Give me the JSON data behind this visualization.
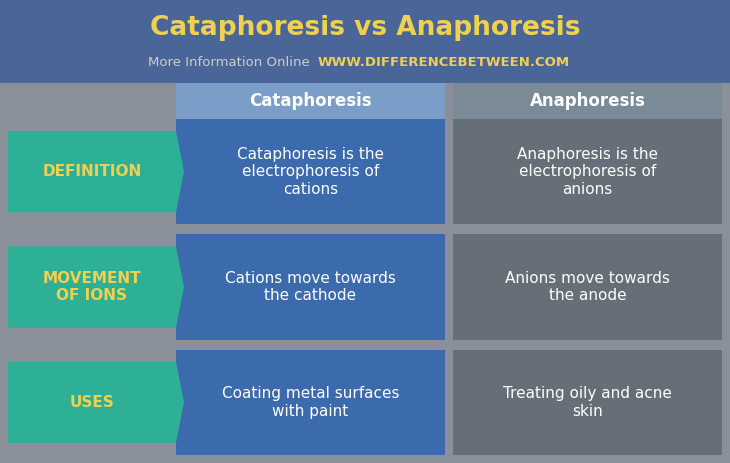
{
  "title": "Cataphoresis vs Anaphoresis",
  "subtitle_plain": "More Information Online",
  "subtitle_url": "WWW.DIFFERENCEBETWEEN.COM",
  "bg_color": "#8a9099",
  "title_bg_color": "#4a6699",
  "col1_header": "Cataphoresis",
  "col2_header": "Anaphoresis",
  "col1_header_color": "#7a9ec8",
  "col2_header_color": "#7a8a96",
  "col1_color": "#3b6aad",
  "col2_color": "#666f78",
  "arrow_color": "#2db096",
  "arrow_text_color": "#f0d050",
  "title_color": "#f0d050",
  "subtitle_color": "#cccccc",
  "url_color": "#f0d050",
  "cell_text_color": "#ffffff",
  "header_text_color": "#ffffff",
  "rows": [
    {
      "label": "DEFINITION",
      "col1": "Cataphoresis is the\nelectrophoresis of\ncations",
      "col2": "Anaphoresis is the\nelectrophoresis of\nanions"
    },
    {
      "label": "MOVEMENT\nOF IONS",
      "col1": "Cations move towards\nthe cathode",
      "col2": "Anions move towards\nthe anode"
    },
    {
      "label": "USES",
      "col1": "Coating metal surfaces\nwith paint",
      "col2": "Treating oily and acne\nskin"
    }
  ],
  "fig_w": 7.3,
  "fig_h": 4.63,
  "dpi": 100,
  "title_fontsize": 19,
  "subtitle_fontsize": 9.5,
  "url_fontsize": 9.5,
  "header_fontsize": 12,
  "label_fontsize": 11,
  "cell_fontsize": 11
}
